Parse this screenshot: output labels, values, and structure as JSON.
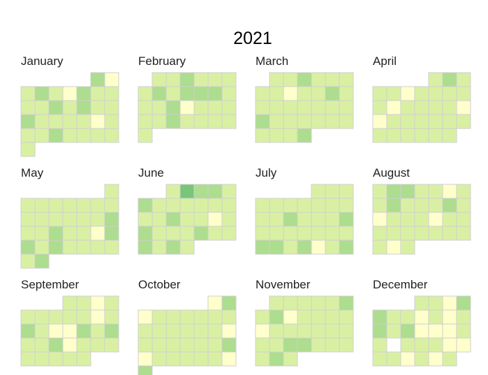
{
  "chart_data": {
    "type": "heatmap",
    "title": "2021",
    "layout": "calendar",
    "week_start": "Sunday",
    "color_scale": {
      "white": "#ffffff",
      "1": "#ffffcc",
      "2": "#d9f0a3",
      "3": "#addd8e",
      "4": "#78c679"
    },
    "months": [
      {
        "name": "January",
        "days": 31,
        "start_weekday": 5,
        "levels": [
          3,
          1,
          2,
          3,
          2,
          1,
          3,
          2,
          2,
          2,
          2,
          3,
          2,
          3,
          2,
          2,
          3,
          2,
          2,
          2,
          2,
          1,
          2,
          2,
          2,
          3,
          2,
          2,
          2,
          2,
          2
        ]
      },
      {
        "name": "February",
        "days": 28,
        "start_weekday": 1,
        "levels": [
          2,
          2,
          3,
          2,
          2,
          2,
          2,
          3,
          2,
          3,
          3,
          3,
          2,
          2,
          2,
          3,
          1,
          2,
          2,
          2,
          2,
          2,
          3,
          2,
          2,
          2,
          2,
          2
        ]
      },
      {
        "name": "March",
        "days": 31,
        "start_weekday": 1,
        "levels": [
          2,
          2,
          3,
          2,
          2,
          2,
          2,
          2,
          1,
          2,
          2,
          3,
          2,
          2,
          2,
          2,
          2,
          2,
          2,
          2,
          3,
          2,
          2,
          2,
          2,
          2,
          2,
          2,
          2,
          2,
          3
        ]
      },
      {
        "name": "April",
        "days": 30,
        "start_weekday": 4,
        "levels": [
          2,
          3,
          2,
          2,
          2,
          1,
          2,
          2,
          2,
          2,
          2,
          1,
          2,
          2,
          2,
          2,
          1,
          1,
          2,
          2,
          2,
          2,
          2,
          2,
          2,
          2,
          2,
          2,
          2,
          2
        ]
      },
      {
        "name": "May",
        "days": 31,
        "start_weekday": 6,
        "levels": [
          2,
          2,
          2,
          2,
          2,
          2,
          2,
          2,
          2,
          2,
          2,
          2,
          2,
          2,
          3,
          2,
          2,
          3,
          2,
          2,
          1,
          3,
          3,
          2,
          3,
          2,
          2,
          2,
          2,
          2,
          3
        ]
      },
      {
        "name": "June",
        "days": 30,
        "start_weekday": 2,
        "levels": [
          2,
          4,
          3,
          3,
          2,
          3,
          2,
          2,
          2,
          2,
          2,
          2,
          2,
          2,
          3,
          2,
          2,
          1,
          2,
          3,
          2,
          2,
          2,
          3,
          2,
          2,
          3,
          2,
          3,
          2
        ]
      },
      {
        "name": "July",
        "days": 31,
        "start_weekday": 4,
        "levels": [
          2,
          2,
          2,
          2,
          2,
          2,
          2,
          2,
          2,
          2,
          2,
          2,
          3,
          2,
          2,
          2,
          3,
          2,
          2,
          2,
          2,
          2,
          2,
          2,
          3,
          3,
          2,
          3,
          1,
          2,
          3
        ]
      },
      {
        "name": "August",
        "days": 31,
        "start_weekday": 0,
        "levels": [
          2,
          3,
          3,
          2,
          2,
          1,
          2,
          2,
          3,
          2,
          2,
          2,
          3,
          2,
          1,
          2,
          2,
          2,
          1,
          2,
          2,
          2,
          2,
          2,
          2,
          2,
          2,
          2,
          2,
          1,
          2
        ]
      },
      {
        "name": "September",
        "days": 30,
        "start_weekday": 3,
        "levels": [
          2,
          2,
          1,
          2,
          2,
          2,
          2,
          2,
          2,
          1,
          2,
          3,
          2,
          1,
          1,
          3,
          2,
          3,
          2,
          2,
          3,
          1,
          2,
          2,
          2,
          2,
          2,
          2,
          2,
          2
        ]
      },
      {
        "name": "October",
        "days": 31,
        "start_weekday": 5,
        "levels": [
          1,
          3,
          1,
          2,
          2,
          2,
          2,
          2,
          2,
          2,
          2,
          2,
          2,
          2,
          2,
          1,
          2,
          2,
          2,
          2,
          2,
          2,
          3,
          1,
          2,
          2,
          2,
          2,
          2,
          1,
          3
        ]
      },
      {
        "name": "November",
        "days": 30,
        "start_weekday": 1,
        "levels": [
          2,
          2,
          2,
          2,
          2,
          3,
          2,
          3,
          1,
          2,
          2,
          2,
          2,
          1,
          2,
          2,
          2,
          2,
          2,
          2,
          2,
          2,
          3,
          3,
          2,
          2,
          2,
          2,
          3,
          2
        ]
      },
      {
        "name": "December",
        "days": 31,
        "start_weekday": 3,
        "levels": [
          2,
          2,
          1,
          3,
          3,
          2,
          2,
          1,
          2,
          1,
          2,
          3,
          2,
          3,
          1,
          1,
          1,
          2,
          2,
          0,
          2,
          2,
          2,
          1,
          1,
          2,
          2,
          1,
          2,
          1,
          2
        ]
      }
    ]
  }
}
